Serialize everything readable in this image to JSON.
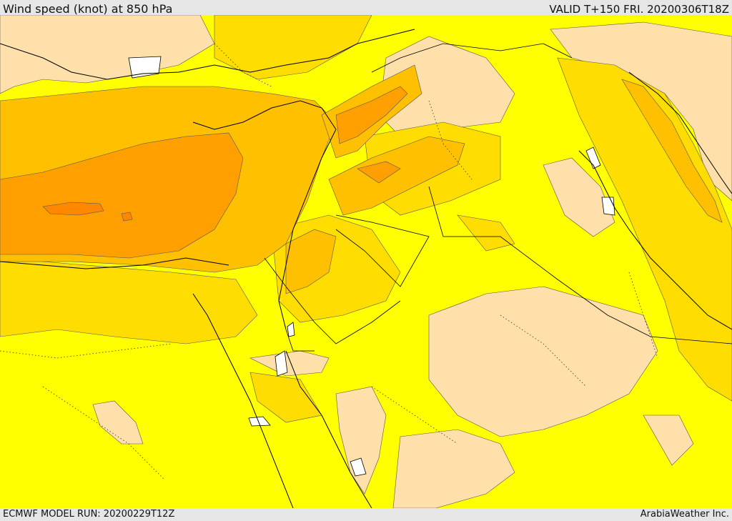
{
  "header": {
    "title": "Wind speed (knot) at 850 hPa",
    "valid": "VALID T+150 FRI. 20200306T18Z"
  },
  "footer": {
    "model_run": "ECMWF MODEL RUN: 20200229T12Z",
    "credit": "ArabiaWeather Inc."
  },
  "map": {
    "colors": {
      "tan": "#ffe0aa",
      "yellow": "#ffff00",
      "gold": "#ffdd00",
      "amber": "#ffc000",
      "orange": "#ffa000",
      "dark_orange": "#ff8800",
      "water": "#ffffff",
      "line": "#000000"
    }
  }
}
